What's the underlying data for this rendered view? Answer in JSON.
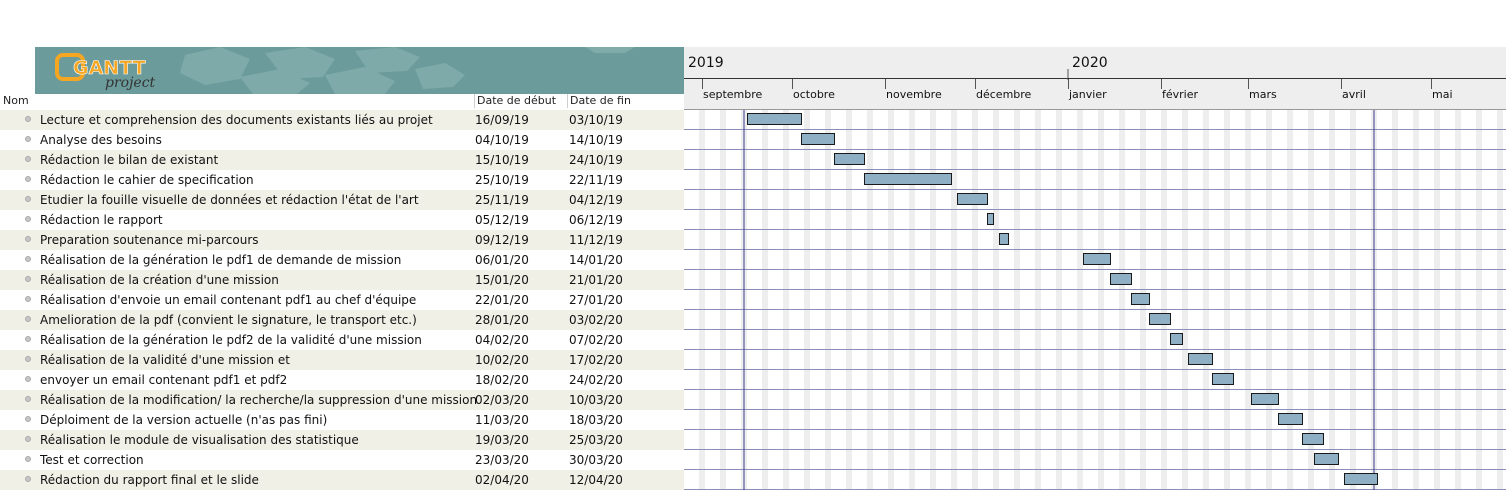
{
  "app": {
    "logo_text": "GANTT",
    "logo_subtext": "project"
  },
  "table": {
    "headers": {
      "name": "Nom",
      "start": "Date de début",
      "end": "Date de fin"
    },
    "rows": [
      {
        "name": "Lecture et comprehension des documents existants liés au projet",
        "start": "16/09/19",
        "end": "03/10/19"
      },
      {
        "name": "Analyse des besoins",
        "start": "04/10/19",
        "end": "14/10/19"
      },
      {
        "name": "Rédaction le bilan de existant",
        "start": "15/10/19",
        "end": "24/10/19"
      },
      {
        "name": "Rédaction  le cahier de specification",
        "start": "25/10/19",
        "end": "22/11/19"
      },
      {
        "name": "Etudier la fouille visuelle de données et rédaction l'état de l'art",
        "start": "25/11/19",
        "end": "04/12/19"
      },
      {
        "name": "Rédaction le rapport",
        "start": "05/12/19",
        "end": "06/12/19"
      },
      {
        "name": "Preparation soutenance mi-parcours",
        "start": "09/12/19",
        "end": "11/12/19"
      },
      {
        "name": "Réalisation de la génération le pdf1 de demande de mission",
        "start": "06/01/20",
        "end": "14/01/20"
      },
      {
        "name": "Réalisation de la création d'une mission",
        "start": "15/01/20",
        "end": "21/01/20"
      },
      {
        "name": "Réalisation d'envoie un email contenant pdf1 au chef d'équipe",
        "start": "22/01/20",
        "end": "27/01/20"
      },
      {
        "name": "Amelioration de la pdf (convient le signature, le transport etc.)",
        "start": "28/01/20",
        "end": "03/02/20"
      },
      {
        "name": "Réalisation de la génération le pdf2 de la validité d'une mission",
        "start": "04/02/20",
        "end": "07/02/20"
      },
      {
        "name": "Réalisation de la validité d'une mission et",
        "start": "10/02/20",
        "end": "17/02/20"
      },
      {
        "name": "envoyer un email contenant pdf1 et pdf2",
        "start": "18/02/20",
        "end": "24/02/20"
      },
      {
        "name": "Réalisation de la modification/ la recherche/la suppression d'une mission",
        "start": "02/03/20",
        "end": "10/03/20"
      },
      {
        "name": "Déploiment de la version actuelle (n'as pas fini)",
        "start": "11/03/20",
        "end": "18/03/20"
      },
      {
        "name": "Réalisation le module de visualisation des statistique",
        "start": "19/03/20",
        "end": "25/03/20"
      },
      {
        "name": "Test et correction",
        "start": "23/03/20",
        "end": "30/03/20"
      },
      {
        "name": "Rédaction du rapport final et le slide",
        "start": "02/04/20",
        "end": "12/04/20"
      }
    ]
  },
  "chart_data": {
    "type": "gantt",
    "years": [
      "2019",
      "2020"
    ],
    "months": [
      "septembre",
      "octobre",
      "novembre",
      "décembre",
      "janvier",
      "février",
      "mars",
      "avril",
      "mai"
    ],
    "x_range": [
      "2019-09-01",
      "2020-05-31"
    ],
    "today": "2020-04-12",
    "colors": {
      "bar_fill": "#8fb0c4",
      "bar_stroke": "#1a1a1a",
      "row_line": "#8a8fb8",
      "today_line": "#3a3a8a",
      "weekend": "#eeeeee",
      "header_bg": "#eeeeee"
    },
    "tasks": [
      {
        "start": "2019-09-16",
        "end": "2019-10-04"
      },
      {
        "start": "2019-10-04",
        "end": "2019-10-15"
      },
      {
        "start": "2019-10-15",
        "end": "2019-10-25"
      },
      {
        "start": "2019-10-25",
        "end": "2019-11-23"
      },
      {
        "start": "2019-11-25",
        "end": "2019-12-05"
      },
      {
        "start": "2019-12-05",
        "end": "2019-12-07"
      },
      {
        "start": "2019-12-09",
        "end": "2019-12-12"
      },
      {
        "start": "2020-01-06",
        "end": "2020-01-15"
      },
      {
        "start": "2020-01-15",
        "end": "2020-01-22"
      },
      {
        "start": "2020-01-22",
        "end": "2020-01-28"
      },
      {
        "start": "2020-01-28",
        "end": "2020-02-04"
      },
      {
        "start": "2020-02-04",
        "end": "2020-02-08"
      },
      {
        "start": "2020-02-10",
        "end": "2020-02-18"
      },
      {
        "start": "2020-02-18",
        "end": "2020-02-25"
      },
      {
        "start": "2020-03-02",
        "end": "2020-03-11"
      },
      {
        "start": "2020-03-11",
        "end": "2020-03-19"
      },
      {
        "start": "2020-03-19",
        "end": "2020-03-26"
      },
      {
        "start": "2020-03-23",
        "end": "2020-03-31"
      },
      {
        "start": "2020-04-02",
        "end": "2020-04-13"
      }
    ]
  }
}
